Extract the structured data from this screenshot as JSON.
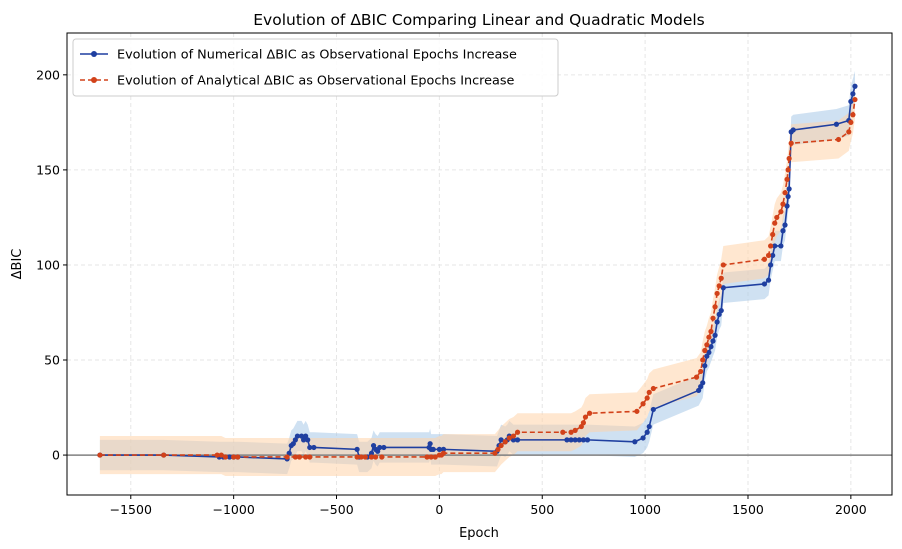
{
  "chart_data": {
    "type": "line",
    "title": "Evolution of ΔBIC Comparing Linear and Quadratic Models",
    "xlabel": "Epoch",
    "ylabel": "ΔBIC",
    "xlim": [
      -1810,
      2200
    ],
    "ylim": [
      -21,
      222
    ],
    "xticks": [
      -1500,
      -1000,
      -500,
      0,
      500,
      1000,
      1500,
      2000
    ],
    "yticks": [
      0,
      50,
      100,
      150,
      200
    ],
    "xtick_labels": [
      "−1500",
      "−1000",
      "−500",
      "0",
      "500",
      "1000",
      "1500",
      "2000"
    ],
    "ytick_labels": [
      "0",
      "50",
      "100",
      "150",
      "200"
    ],
    "grid": true,
    "legend_position": "top-left",
    "reference_line_y": 0,
    "series": [
      {
        "name": "Evolution of Numerical ΔBIC as Observational Epochs Increase",
        "color": "#1f3fa0",
        "band_color": "#a8c8e8",
        "linestyle": "solid",
        "band_halfwidth": 8,
        "points": [
          [
            -1650,
            0
          ],
          [
            -1340,
            0
          ],
          [
            -1070,
            -1
          ],
          [
            -1050,
            -1
          ],
          [
            -1020,
            -1
          ],
          [
            -1000,
            -1
          ],
          [
            -980,
            -1
          ],
          [
            -740,
            -2
          ],
          [
            -730,
            1
          ],
          [
            -720,
            5
          ],
          [
            -710,
            6
          ],
          [
            -700,
            8
          ],
          [
            -690,
            10
          ],
          [
            -670,
            10
          ],
          [
            -660,
            8
          ],
          [
            -650,
            10
          ],
          [
            -640,
            8
          ],
          [
            -630,
            4
          ],
          [
            -610,
            4
          ],
          [
            -400,
            3
          ],
          [
            -390,
            -1
          ],
          [
            -350,
            -1
          ],
          [
            -330,
            1
          ],
          [
            -320,
            5
          ],
          [
            -310,
            3
          ],
          [
            -300,
            2
          ],
          [
            -290,
            4
          ],
          [
            -270,
            4
          ],
          [
            -50,
            4
          ],
          [
            -45,
            6
          ],
          [
            -40,
            3
          ],
          [
            -30,
            3
          ],
          [
            0,
            3
          ],
          [
            20,
            3
          ],
          [
            280,
            2
          ],
          [
            290,
            5
          ],
          [
            300,
            8
          ],
          [
            320,
            7
          ],
          [
            330,
            8
          ],
          [
            340,
            10
          ],
          [
            350,
            9
          ],
          [
            360,
            8
          ],
          [
            380,
            8
          ],
          [
            620,
            8
          ],
          [
            640,
            8
          ],
          [
            660,
            8
          ],
          [
            680,
            8
          ],
          [
            700,
            8
          ],
          [
            720,
            8
          ],
          [
            950,
            7
          ],
          [
            990,
            9
          ],
          [
            1010,
            12
          ],
          [
            1020,
            15
          ],
          [
            1040,
            24
          ],
          [
            1260,
            34
          ],
          [
            1270,
            36
          ],
          [
            1280,
            38
          ],
          [
            1290,
            47
          ],
          [
            1300,
            52
          ],
          [
            1310,
            54
          ],
          [
            1320,
            57
          ],
          [
            1330,
            60
          ],
          [
            1340,
            63
          ],
          [
            1350,
            70
          ],
          [
            1360,
            74
          ],
          [
            1370,
            76
          ],
          [
            1380,
            88
          ],
          [
            1580,
            90
          ],
          [
            1600,
            92
          ],
          [
            1610,
            100
          ],
          [
            1620,
            105
          ],
          [
            1630,
            110
          ],
          [
            1660,
            110
          ],
          [
            1670,
            118
          ],
          [
            1680,
            121
          ],
          [
            1690,
            131
          ],
          [
            1695,
            136
          ],
          [
            1700,
            140
          ],
          [
            1710,
            170
          ],
          [
            1720,
            171
          ],
          [
            1930,
            174
          ],
          [
            1990,
            176
          ],
          [
            2000,
            186
          ],
          [
            2010,
            190
          ],
          [
            2020,
            194
          ]
        ]
      },
      {
        "name": "Evolution of Analytical ΔBIC as Observational Epochs Increase",
        "color": "#d2421a",
        "band_color": "#ffd3aa",
        "linestyle": "dashed",
        "band_halfwidth": 10,
        "points": [
          [
            -1650,
            0
          ],
          [
            -1340,
            0
          ],
          [
            -1080,
            0
          ],
          [
            -1060,
            0
          ],
          [
            -1040,
            -1
          ],
          [
            -1000,
            -1
          ],
          [
            -980,
            -1
          ],
          [
            -740,
            -1
          ],
          [
            -700,
            -1
          ],
          [
            -680,
            -1
          ],
          [
            -650,
            -1
          ],
          [
            -630,
            -1
          ],
          [
            -400,
            -1
          ],
          [
            -380,
            -1
          ],
          [
            -360,
            -1
          ],
          [
            -330,
            -1
          ],
          [
            -310,
            -1
          ],
          [
            -280,
            -1
          ],
          [
            -60,
            -1
          ],
          [
            -40,
            -1
          ],
          [
            -20,
            -1
          ],
          [
            0,
            0
          ],
          [
            10,
            0
          ],
          [
            20,
            1
          ],
          [
            270,
            1
          ],
          [
            285,
            3
          ],
          [
            300,
            5
          ],
          [
            320,
            7
          ],
          [
            340,
            9
          ],
          [
            360,
            10
          ],
          [
            380,
            12
          ],
          [
            600,
            12
          ],
          [
            640,
            12
          ],
          [
            660,
            13
          ],
          [
            690,
            15
          ],
          [
            700,
            17
          ],
          [
            710,
            20
          ],
          [
            730,
            22
          ],
          [
            960,
            23
          ],
          [
            990,
            27
          ],
          [
            1010,
            30
          ],
          [
            1020,
            33
          ],
          [
            1040,
            35
          ],
          [
            1250,
            41
          ],
          [
            1270,
            44
          ],
          [
            1280,
            50
          ],
          [
            1290,
            55
          ],
          [
            1300,
            58
          ],
          [
            1310,
            62
          ],
          [
            1320,
            65
          ],
          [
            1330,
            72
          ],
          [
            1340,
            78
          ],
          [
            1350,
            85
          ],
          [
            1360,
            89
          ],
          [
            1370,
            93
          ],
          [
            1380,
            100
          ],
          [
            1580,
            103
          ],
          [
            1600,
            105
          ],
          [
            1610,
            110
          ],
          [
            1620,
            116
          ],
          [
            1630,
            122
          ],
          [
            1640,
            125
          ],
          [
            1660,
            128
          ],
          [
            1670,
            132
          ],
          [
            1680,
            138
          ],
          [
            1690,
            145
          ],
          [
            1695,
            150
          ],
          [
            1700,
            156
          ],
          [
            1710,
            164
          ],
          [
            1940,
            166
          ],
          [
            1990,
            170
          ],
          [
            2000,
            175
          ],
          [
            2010,
            179
          ],
          [
            2020,
            187
          ]
        ]
      }
    ]
  }
}
